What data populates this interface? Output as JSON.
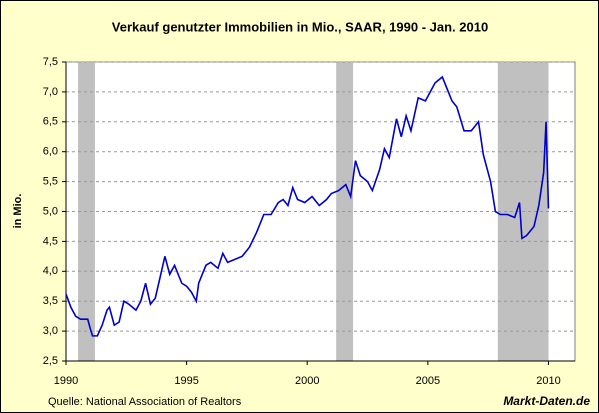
{
  "chart_data": {
    "type": "line",
    "title": "Verkauf genutzter Immobilien in Mio., SAAR, 1990 - Jan. 2010",
    "ylabel": "in Mio.",
    "source": "Quelle: National Association of Realtors",
    "watermark": "Markt-Daten.de",
    "x": [
      1990.0,
      1990.2,
      1990.4,
      1990.6,
      1990.9,
      1991.0,
      1991.1,
      1991.3,
      1991.5,
      1991.7,
      1991.8,
      1992.0,
      1992.2,
      1992.4,
      1992.6,
      1992.9,
      1993.1,
      1993.3,
      1993.5,
      1993.7,
      1993.9,
      1994.1,
      1994.3,
      1994.5,
      1994.8,
      1995.0,
      1995.2,
      1995.4,
      1995.5,
      1995.8,
      1996.0,
      1996.3,
      1996.5,
      1996.7,
      1997.0,
      1997.3,
      1997.6,
      1997.9,
      1998.2,
      1998.5,
      1998.8,
      1999.0,
      1999.2,
      1999.4,
      1999.6,
      1999.9,
      2000.2,
      2000.5,
      2000.8,
      2001.0,
      2001.3,
      2001.6,
      2001.8,
      2002.0,
      2002.2,
      2002.5,
      2002.7,
      2003.0,
      2003.2,
      2003.4,
      2003.7,
      2003.9,
      2004.1,
      2004.3,
      2004.6,
      2004.9,
      2005.1,
      2005.3,
      2005.6,
      2005.8,
      2006.0,
      2006.2,
      2006.5,
      2006.8,
      2007.1,
      2007.3,
      2007.6,
      2007.8,
      2008.0,
      2008.3,
      2008.6,
      2008.8,
      2008.9,
      2009.1,
      2009.4,
      2009.6,
      2009.8,
      2009.9,
      2010.0
    ],
    "series": [
      {
        "name": "Verkauf genutzter Immobilien",
        "color": "#0000cc",
        "values": [
          3.62,
          3.4,
          3.25,
          3.2,
          3.2,
          3.05,
          2.92,
          2.92,
          3.1,
          3.35,
          3.4,
          3.1,
          3.15,
          3.5,
          3.45,
          3.35,
          3.5,
          3.8,
          3.45,
          3.55,
          3.9,
          4.25,
          3.95,
          4.1,
          3.8,
          3.75,
          3.65,
          3.5,
          3.8,
          4.1,
          4.15,
          4.05,
          4.3,
          4.15,
          4.2,
          4.25,
          4.4,
          4.65,
          4.95,
          4.95,
          5.15,
          5.2,
          5.1,
          5.4,
          5.2,
          5.15,
          5.25,
          5.1,
          5.2,
          5.3,
          5.35,
          5.45,
          5.25,
          5.85,
          5.6,
          5.5,
          5.35,
          5.7,
          6.05,
          5.9,
          6.55,
          6.25,
          6.6,
          6.35,
          6.9,
          6.85,
          7.0,
          7.15,
          7.25,
          7.05,
          6.85,
          6.75,
          6.35,
          6.35,
          6.5,
          5.95,
          5.5,
          5.0,
          4.95,
          4.95,
          4.9,
          5.15,
          4.55,
          4.6,
          4.75,
          5.1,
          5.65,
          6.5,
          5.05
        ]
      }
    ],
    "shaded_ranges": [
      [
        1990.5,
        1991.2
      ],
      [
        2001.2,
        2001.9
      ],
      [
        2007.9,
        2010.0
      ]
    ],
    "shade_color": "#c0c0c0",
    "xlim": [
      1990,
      2011.1
    ],
    "xticks": [
      1990,
      1995,
      2000,
      2005,
      2010
    ],
    "ylim": [
      2.5,
      7.5
    ],
    "yticks": [
      {
        "value": 2.5,
        "label": "2,5"
      },
      {
        "value": 3.0,
        "label": "3,0"
      },
      {
        "value": 3.5,
        "label": "3,5"
      },
      {
        "value": 4.0,
        "label": "4,0"
      },
      {
        "value": 4.5,
        "label": "4,5"
      },
      {
        "value": 5.0,
        "label": "5,0"
      },
      {
        "value": 5.5,
        "label": "5,5"
      },
      {
        "value": 6.0,
        "label": "6,0"
      },
      {
        "value": 6.5,
        "label": "6,5"
      },
      {
        "value": 7.0,
        "label": "7,0"
      },
      {
        "value": 7.5,
        "label": "7,5"
      }
    ],
    "grid": true
  }
}
